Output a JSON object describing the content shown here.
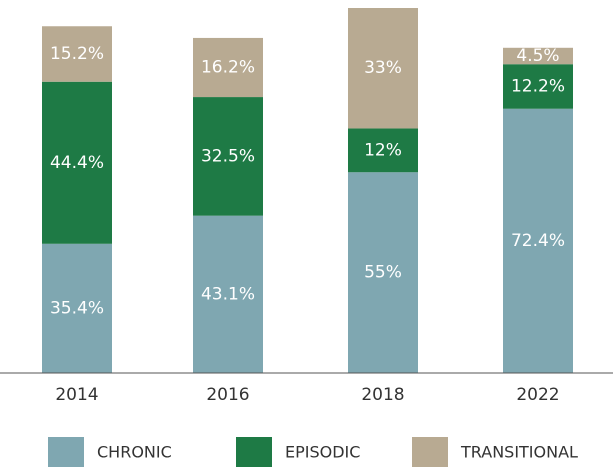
{
  "chart_data": {
    "type": "stacked_bar",
    "categories": [
      "2014",
      "2016",
      "2018",
      "2022"
    ],
    "series": [
      {
        "name": "CHRONIC",
        "color": "#7fa7b1",
        "values": [
          35.4,
          43.1,
          55,
          72.4
        ],
        "value_labels": [
          "35.4%",
          "43.1%",
          "55%",
          "72.4%"
        ]
      },
      {
        "name": "EPISODIC",
        "color": "#1e7a45",
        "values": [
          44.4,
          32.5,
          12,
          12.2
        ],
        "value_labels": [
          "44.4%",
          "32.5%",
          "12%",
          "12.2%"
        ]
      },
      {
        "name": "TRANSITIONAL",
        "color": "#b8aa92",
        "values": [
          15.2,
          16.2,
          33,
          4.5
        ],
        "value_labels": [
          "15.2%",
          "16.2%",
          "33%",
          "4.5%"
        ]
      }
    ],
    "ylim": [
      0,
      100
    ]
  }
}
